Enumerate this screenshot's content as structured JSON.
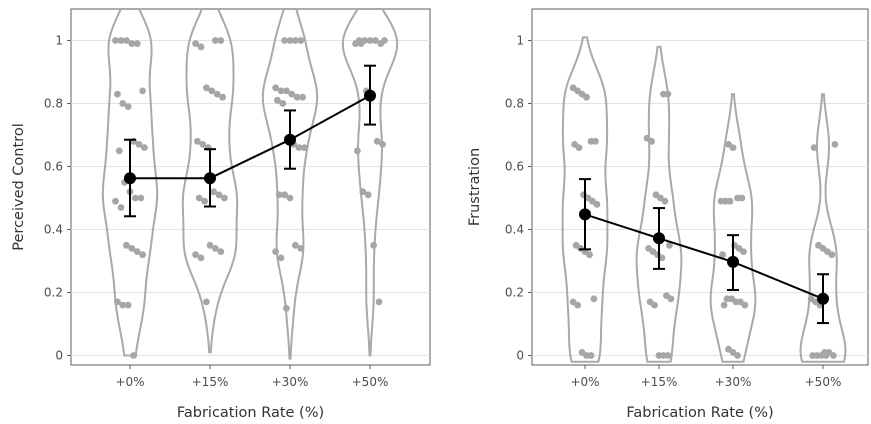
{
  "chart_data": [
    {
      "type": "violin",
      "xlabel": "Fabrication Rate (%)",
      "ylabel": "Perceived Control",
      "categories": [
        "+0%",
        "+15%",
        "+30%",
        "+50%"
      ],
      "ylim": [
        0,
        1
      ],
      "yticks": [
        0,
        0.2,
        0.4,
        0.6,
        0.8,
        1
      ],
      "ytick_labels": [
        "0",
        "0.2",
        "0.4",
        "0.6",
        "0.8",
        "1"
      ],
      "grid": "horizontal",
      "means": [
        0.563,
        0.563,
        0.685,
        0.825
      ],
      "ci_lower": [
        0.442,
        0.473,
        0.593,
        0.733
      ],
      "ci_upper": [
        0.685,
        0.655,
        0.778,
        0.92
      ],
      "violin_extent": [
        [
          0.0,
          1.1
        ],
        [
          0.01,
          1.1
        ],
        [
          -0.01,
          1.1
        ],
        [
          0.0,
          1.1
        ]
      ],
      "points": [
        [
          1,
          1,
          1,
          0.99,
          0.99,
          0.84,
          0.83,
          0.8,
          0.79,
          0.68,
          0.67,
          0.66,
          0.65,
          0.55,
          0.52,
          0.5,
          0.5,
          0.49,
          0.47,
          0.35,
          0.34,
          0.33,
          0.32,
          0.17,
          0.16,
          0.16,
          0.0
        ],
        [
          1,
          1,
          0.99,
          0.98,
          0.85,
          0.84,
          0.83,
          0.82,
          0.68,
          0.67,
          0.66,
          0.52,
          0.51,
          0.5,
          0.5,
          0.49,
          0.35,
          0.34,
          0.33,
          0.32,
          0.31,
          0.17
        ],
        [
          1,
          1,
          1,
          1,
          0.85,
          0.84,
          0.84,
          0.83,
          0.82,
          0.82,
          0.81,
          0.8,
          0.68,
          0.67,
          0.66,
          0.66,
          0.51,
          0.51,
          0.5,
          0.35,
          0.34,
          0.33,
          0.31,
          0.15
        ],
        [
          1,
          1,
          1,
          1,
          1,
          0.99,
          0.99,
          0.99,
          0.84,
          0.83,
          0.68,
          0.67,
          0.65,
          0.52,
          0.51,
          0.35,
          0.17
        ]
      ]
    },
    {
      "type": "violin",
      "xlabel": "Fabrication Rate (%)",
      "ylabel": "Frustration",
      "categories": [
        "+0%",
        "+15%",
        "+30%",
        "+50%"
      ],
      "ylim": [
        0,
        1
      ],
      "yticks": [
        0,
        0.2,
        0.4,
        0.6,
        0.8,
        1
      ],
      "ytick_labels": [
        "0",
        "0.2",
        "0.4",
        "0.6",
        "0.8",
        "1"
      ],
      "grid": "horizontal",
      "means": [
        0.448,
        0.372,
        0.297,
        0.18
      ],
      "ci_lower": [
        0.337,
        0.275,
        0.208,
        0.103
      ],
      "ci_upper": [
        0.56,
        0.468,
        0.382,
        0.258
      ],
      "violin_extent": [
        [
          -0.02,
          1.01
        ],
        [
          -0.02,
          0.98
        ],
        [
          -0.02,
          0.83
        ],
        [
          -0.02,
          0.83
        ]
      ],
      "points": [
        [
          0.85,
          0.84,
          0.83,
          0.82,
          0.68,
          0.68,
          0.67,
          0.66,
          0.51,
          0.5,
          0.49,
          0.48,
          0.35,
          0.34,
          0.33,
          0.32,
          0.18,
          0.17,
          0.16,
          0.01,
          0.0,
          0.0
        ],
        [
          0.83,
          0.83,
          0.69,
          0.68,
          0.51,
          0.5,
          0.49,
          0.35,
          0.34,
          0.33,
          0.32,
          0.31,
          0.19,
          0.18,
          0.17,
          0.16,
          0.0,
          0.0,
          0.0
        ],
        [
          0.67,
          0.66,
          0.5,
          0.5,
          0.49,
          0.49,
          0.49,
          0.35,
          0.34,
          0.33,
          0.32,
          0.18,
          0.18,
          0.17,
          0.17,
          0.16,
          0.16,
          0.02,
          0.01,
          0.0
        ],
        [
          0.67,
          0.66,
          0.35,
          0.34,
          0.33,
          0.32,
          0.18,
          0.17,
          0.16,
          0.01,
          0.01,
          0.0,
          0.0,
          0.0,
          0.0,
          0.0
        ]
      ]
    }
  ]
}
